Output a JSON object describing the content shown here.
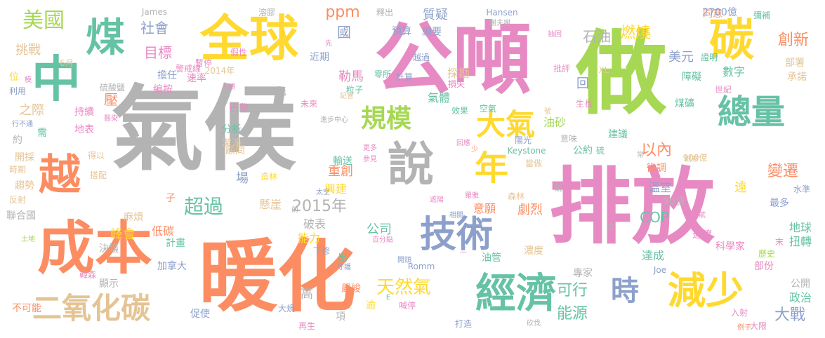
{
  "palette": {
    "pink": "#e78ac3",
    "green": "#a6d854",
    "orange": "#fc8d62",
    "teal": "#66c2a5",
    "yellow": "#ffd92f",
    "gray": "#b3b3b3",
    "tan": "#e5c494",
    "blue": "#8da0cb"
  },
  "words": [
    {
      "text": "氣候",
      "color": "#b3b3b3"
    },
    {
      "text": "排放",
      "color": "#e78ac3"
    },
    {
      "text": "公噸",
      "color": "#e78ac3"
    },
    {
      "text": "做",
      "color": "#a6d854"
    },
    {
      "text": "暖化",
      "color": "#fc8d62"
    },
    {
      "text": "成本",
      "color": "#fc8d62"
    },
    {
      "text": "全球",
      "color": "#ffd92f"
    },
    {
      "text": "中",
      "color": "#66c2a5"
    },
    {
      "text": "煤",
      "color": "#66c2a5"
    },
    {
      "text": "碳",
      "color": "#ffd92f"
    },
    {
      "text": "說",
      "color": "#b3b3b3"
    },
    {
      "text": "越",
      "color": "#fc8d62"
    },
    {
      "text": "經濟",
      "color": "#66c2a5"
    },
    {
      "text": "減少",
      "color": "#ffd92f"
    },
    {
      "text": "技術",
      "color": "#8da0cb"
    },
    {
      "text": "總量",
      "color": "#66c2a5"
    },
    {
      "text": "二氧化碳",
      "color": "#e5c494"
    },
    {
      "text": "年",
      "color": "#ffd92f"
    },
    {
      "text": "大氣",
      "color": "#ffd92f"
    },
    {
      "text": "規模",
      "color": "#a6d854"
    },
    {
      "text": "時",
      "color": "#8da0cb"
    },
    {
      "text": "美國",
      "color": "#a6d854"
    },
    {
      "text": "天然氣",
      "color": "#ffd92f"
    },
    {
      "text": "超過",
      "color": "#66c2a5"
    },
    {
      "text": "2015年",
      "color": "#b3b3b3"
    },
    {
      "text": "ppm",
      "color": "#fc8d62"
    },
    {
      "text": "創新",
      "color": "#fc8d62"
    },
    {
      "text": "燃燒",
      "color": "#ffd92f"
    },
    {
      "text": "石油",
      "color": "#b3b3b3"
    },
    {
      "text": "大戰",
      "color": "#8da0cb"
    },
    {
      "text": "能源",
      "color": "#66c2a5"
    },
    {
      "text": "以內",
      "color": "#fc8d62"
    },
    {
      "text": "變遷",
      "color": "#fc8d62"
    },
    {
      "text": "COP",
      "color": "#66c2a5"
    },
    {
      "text": "可行",
      "color": "#66c2a5"
    },
    {
      "text": "目標",
      "color": "#e78ac3"
    },
    {
      "text": "社會",
      "color": "#8da0cb"
    },
    {
      "text": "國",
      "color": "#8da0cb"
    },
    {
      "text": "質疑",
      "color": "#8da0cb"
    },
    {
      "text": "美元",
      "color": "#8da0cb"
    },
    {
      "text": "挑戰",
      "color": "#e5c494"
    },
    {
      "text": "壓",
      "color": "#fc8d62"
    },
    {
      "text": "之際",
      "color": "#e5c494"
    },
    {
      "text": "峰會",
      "color": "#ffd92f"
    },
    {
      "text": "低碳",
      "color": "#fc8d62"
    },
    {
      "text": "懸崖",
      "color": "#e5c494"
    },
    {
      "text": "公司",
      "color": "#66c2a5"
    },
    {
      "text": "高",
      "color": "#b3b3b3"
    },
    {
      "text": "能力",
      "color": "#ffd92f"
    },
    {
      "text": "破表",
      "color": "#b3b3b3"
    },
    {
      "text": "氣體",
      "color": "#66c2a5"
    },
    {
      "text": "油砂",
      "color": "#a6d854"
    },
    {
      "text": "勒馬",
      "color": "#e78ac3"
    },
    {
      "text": "探勘",
      "color": "#e5c494"
    },
    {
      "text": "重創",
      "color": "#fc8d62"
    },
    {
      "text": "興建",
      "color": "#ffd92f"
    },
    {
      "text": "意願",
      "color": "#fc8d62"
    },
    {
      "text": "劇烈",
      "color": "#fc8d62"
    },
    {
      "text": "溫室",
      "color": "#8da0cb"
    },
    {
      "text": "90億",
      "color": "#b3b3b3"
    },
    {
      "text": "數字",
      "color": "#66c2a5"
    },
    {
      "text": "障礙",
      "color": "#66c2a5"
    },
    {
      "text": "地球",
      "color": "#66c2a5"
    },
    {
      "text": "扭轉",
      "color": "#66c2a5"
    },
    {
      "text": "政治",
      "color": "#66c2a5"
    },
    {
      "text": "公開",
      "color": "#b3b3b3"
    },
    {
      "text": "最多",
      "color": "#8da0cb"
    },
    {
      "text": "達成",
      "color": "#66c2a5"
    },
    {
      "text": "專家",
      "color": "#b3b3b3"
    },
    {
      "text": "麻煩",
      "color": "#e5c494"
    },
    {
      "text": "巴黎",
      "color": "#e78ac3"
    },
    {
      "text": "顧問",
      "color": "#e5c494"
    },
    {
      "text": "建議",
      "color": "#66c2a5"
    },
    {
      "text": "同意",
      "color": "#fc8d62"
    },
    {
      "text": "部署",
      "color": "#e5c494"
    },
    {
      "text": "承諾",
      "color": "#e5c494"
    },
    {
      "text": "煤礦",
      "color": "#66c2a5"
    },
    {
      "text": "公約",
      "color": "#66c2a5"
    },
    {
      "text": "微調",
      "color": "#fc8d62"
    },
    {
      "text": "2700億",
      "color": "#8da0cb"
    },
    {
      "text": "綱要",
      "color": "#8da0cb"
    },
    {
      "text": "預算",
      "color": "#8da0cb"
    },
    {
      "text": "近期",
      "color": "#8da0cb"
    },
    {
      "text": "擔任",
      "color": "#8da0cb"
    },
    {
      "text": "速率",
      "color": "#e78ac3"
    },
    {
      "text": "編按",
      "color": "#e78ac3"
    },
    {
      "text": "持續",
      "color": "#e78ac3"
    },
    {
      "text": "地表",
      "color": "#e78ac3"
    },
    {
      "text": "分析",
      "color": "#66c2a5"
    },
    {
      "text": "潔淨",
      "color": "#e5c494"
    },
    {
      "text": "場",
      "color": "#8da0cb"
    },
    {
      "text": "輸送",
      "color": "#66c2a5"
    },
    {
      "text": "計畫",
      "color": "#66c2a5"
    },
    {
      "text": "加拿大",
      "color": "#8da0cb"
    },
    {
      "text": "決議",
      "color": "#b3b3b3"
    },
    {
      "text": "聯合國",
      "color": "#b3b3b3"
    },
    {
      "text": "不可能",
      "color": "#fc8d62"
    },
    {
      "text": "促使",
      "color": "#8da0cb"
    },
    {
      "text": "顯示",
      "color": "#b3b3b3"
    },
    {
      "text": "約",
      "color": "#b3b3b3"
    },
    {
      "text": "需",
      "color": "#66c2a5"
    },
    {
      "text": "開採",
      "color": "#e5c494"
    },
    {
      "text": "趨勢",
      "color": "#e5c494"
    },
    {
      "text": "反射",
      "color": "#e5c494"
    },
    {
      "text": "時期",
      "color": "#e5c494"
    },
    {
      "text": "位",
      "color": "#ffd92f"
    },
    {
      "text": "利用",
      "color": "#8da0cb"
    },
    {
      "text": "子",
      "color": "#fc8d62"
    },
    {
      "text": "回",
      "color": "#8da0cb"
    },
    {
      "text": "出",
      "color": "#66c2a5"
    },
    {
      "text": "逾",
      "color": "#ffd92f"
    },
    {
      "text": "項",
      "color": "#b3b3b3"
    },
    {
      "text": "嚴峻",
      "color": "#fc8d62"
    },
    {
      "text": "喊停",
      "color": "#e78ac3"
    },
    {
      "text": "打造",
      "color": "#8da0cb"
    },
    {
      "text": "再生",
      "color": "#e78ac3"
    },
    {
      "text": "大規",
      "color": "#8da0cb"
    },
    {
      "text": "入射",
      "color": "#e78ac3"
    },
    {
      "text": "大限",
      "color": "#e78ac3"
    },
    {
      "text": "部份",
      "color": "#e78ac3"
    },
    {
      "text": "科學家",
      "color": "#e78ac3"
    },
    {
      "text": "水準",
      "color": "#8da0cb"
    },
    {
      "text": "遠",
      "color": "#ffd92f"
    },
    {
      "text": "過渡",
      "color": "#e78ac3"
    },
    {
      "text": "濃度",
      "color": "#e5c494"
    },
    {
      "text": "油管",
      "color": "#66c2a5"
    },
    {
      "text": "森林",
      "color": "#e5c494"
    },
    {
      "text": "陽光",
      "color": "#8da0cb"
    },
    {
      "text": "空氣",
      "color": "#66c2a5"
    },
    {
      "text": "效果",
      "color": "#66c2a5"
    },
    {
      "text": "計算",
      "color": "#8da0cb"
    },
    {
      "text": "越過",
      "color": "#8da0cb"
    },
    {
      "text": "零所",
      "color": "#66c2a5"
    },
    {
      "text": "粒子",
      "color": "#66c2a5"
    },
    {
      "text": "損失",
      "color": "#e78ac3"
    },
    {
      "text": "當做",
      "color": "#e5c494"
    },
    {
      "text": "意味",
      "color": "#b3b3b3"
    },
    {
      "text": "Keystone",
      "color": "#66c2a5"
    },
    {
      "text": "Hansen",
      "color": "#8da0cb"
    },
    {
      "text": "James",
      "color": "#b3b3b3"
    },
    {
      "text": "Joe",
      "color": "#8da0cb"
    },
    {
      "text": "Romm",
      "color": "#8da0cb"
    },
    {
      "text": "XL",
      "color": "#e5c494"
    },
    {
      "text": "2014年",
      "color": "#e5c494"
    },
    {
      "text": "6月",
      "color": "#e5c494"
    },
    {
      "text": "900億",
      "color": "#e5c494"
    },
    {
      "text": "歷史",
      "color": "#a6d854"
    },
    {
      "text": "世紀",
      "color": "#e78ac3"
    },
    {
      "text": "證明",
      "color": "#66c2a5"
    },
    {
      "text": "批評",
      "color": "#e78ac3"
    },
    {
      "text": "彌補",
      "color": "#66c2a5"
    },
    {
      "text": "硫酸鹽",
      "color": "#b3b3b3"
    },
    {
      "text": "假性",
      "color": "#e78ac3"
    },
    {
      "text": "警戒線",
      "color": "#e78ac3"
    },
    {
      "text": "暫停",
      "color": "#e78ac3"
    },
    {
      "text": "溶膠",
      "color": "#b3b3b3"
    },
    {
      "text": "釋出",
      "color": "#b3b3b3"
    },
    {
      "text": "搭配",
      "color": "#e5c494"
    },
    {
      "text": "行不通",
      "color": "#8da0cb"
    },
    {
      "text": "得以",
      "color": "#e5c494"
    },
    {
      "text": "醫染",
      "color": "#e78ac3"
    },
    {
      "text": "土地",
      "color": "#a6d854"
    },
    {
      "text": "韓森",
      "color": "#e78ac3"
    },
    {
      "text": "造林",
      "color": "#ffd92f"
    },
    {
      "text": "太空",
      "color": "#8da0cb"
    },
    {
      "text": "更多",
      "color": "#e78ac3"
    },
    {
      "text": "參見",
      "color": "#e78ac3"
    },
    {
      "text": "百分點",
      "color": "#e78ac3"
    },
    {
      "text": "前",
      "color": "#b3b3b3"
    },
    {
      "text": "下修",
      "color": "#8da0cb"
    },
    {
      "text": "守護",
      "color": "#8da0cb"
    },
    {
      "text": "開頭",
      "color": "#8da0cb"
    },
    {
      "text": "相關",
      "color": "#8da0cb"
    },
    {
      "text": "遮陽",
      "color": "#e78ac3"
    },
    {
      "text": "砍伐",
      "color": "#b3b3b3"
    },
    {
      "text": "例子",
      "color": "#fc8d62"
    },
    {
      "text": "進步中心",
      "color": "#b3b3b3"
    },
    {
      "text": "未來",
      "color": "#e78ac3"
    },
    {
      "text": "人類",
      "color": "#e78ac3"
    },
    {
      "text": "賦",
      "color": "#e78ac3"
    },
    {
      "text": "末",
      "color": "#e78ac3"
    },
    {
      "text": "次",
      "color": "#b3b3b3"
    },
    {
      "text": "常",
      "color": "#b3b3b3"
    },
    {
      "text": "硫",
      "color": "#66c2a5"
    },
    {
      "text": "氣",
      "color": "#b3b3b3"
    },
    {
      "text": "生長",
      "color": "#e78ac3"
    },
    {
      "text": "抽回",
      "color": "#e78ac3"
    },
    {
      "text": "號",
      "color": "#e5c494"
    },
    {
      "text": "二",
      "color": "#e78ac3"
    },
    {
      "text": "少",
      "color": "#fc8d62"
    },
    {
      "text": "E",
      "color": "#66c2a5"
    },
    {
      "text": "事",
      "color": "#b3b3b3"
    },
    {
      "text": "先",
      "color": "#e78ac3"
    },
    {
      "text": "模",
      "color": "#e78ac3"
    },
    {
      "text": "觀察",
      "color": "#e5c494"
    },
    {
      "text": "謝夫謝",
      "color": "#b3b3b3"
    },
    {
      "text": "記會",
      "color": "#e5c494"
    },
    {
      "text": "羅雅",
      "color": "#e78ac3"
    },
    {
      "text": "回應",
      "color": "#e78ac3"
    }
  ]
}
